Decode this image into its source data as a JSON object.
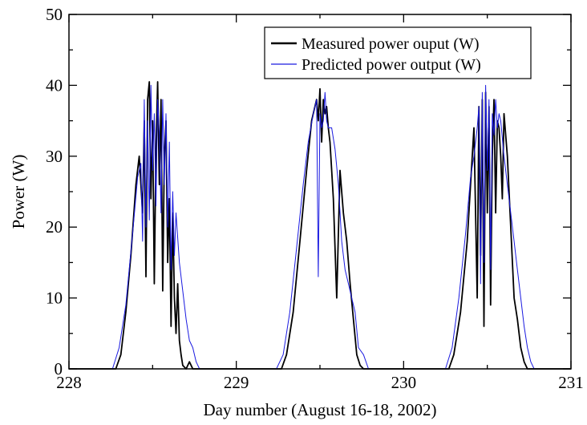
{
  "chart_data": {
    "type": "line",
    "title": "",
    "xlabel": "Day number (August  16-18, 2002)",
    "ylabel": "Power (W)",
    "xlim": [
      228,
      231
    ],
    "ylim": [
      0,
      50
    ],
    "xticks": [
      228,
      229,
      230,
      231
    ],
    "yticks": [
      0,
      10,
      20,
      30,
      40,
      50
    ],
    "grid": false,
    "legend_position": "top-right",
    "series": [
      {
        "name": "Measured power ouput (W)",
        "color": "#000000",
        "x": [
          228.0,
          228.28,
          228.31,
          228.34,
          228.37,
          228.4,
          228.42,
          228.44,
          228.45,
          228.46,
          228.47,
          228.48,
          228.49,
          228.5,
          228.51,
          228.52,
          228.53,
          228.54,
          228.55,
          228.56,
          228.57,
          228.58,
          228.59,
          228.6,
          228.61,
          228.62,
          228.63,
          228.64,
          228.65,
          228.66,
          228.67,
          228.68,
          228.7,
          228.72,
          228.74,
          228.76,
          229.0,
          229.27,
          229.3,
          229.34,
          229.38,
          229.42,
          229.45,
          229.47,
          229.48,
          229.49,
          229.5,
          229.51,
          229.52,
          229.53,
          229.54,
          229.55,
          229.56,
          229.58,
          229.6,
          229.62,
          229.64,
          229.66,
          229.68,
          229.7,
          229.72,
          229.74,
          229.76,
          230.0,
          230.27,
          230.3,
          230.34,
          230.38,
          230.4,
          230.42,
          230.44,
          230.45,
          230.46,
          230.47,
          230.48,
          230.49,
          230.5,
          230.51,
          230.52,
          230.53,
          230.54,
          230.55,
          230.56,
          230.57,
          230.58,
          230.59,
          230.6,
          230.62,
          230.64,
          230.66,
          230.68,
          230.7,
          230.72,
          230.74,
          230.76,
          231.0
        ],
        "y": [
          0,
          0,
          2,
          8,
          16,
          26,
          30,
          22,
          35,
          13,
          38,
          40.5,
          24,
          35,
          12,
          31,
          40.5,
          26,
          38,
          11,
          30,
          35,
          15,
          24,
          6,
          22,
          10,
          5,
          12,
          4,
          2,
          0.5,
          0,
          1,
          0,
          0,
          0,
          0,
          2,
          8,
          18,
          28,
          35,
          37,
          38,
          35,
          39.5,
          32,
          38,
          36,
          37,
          34,
          32,
          24,
          10,
          28,
          22,
          18,
          12,
          7,
          2,
          0.5,
          0,
          0,
          0,
          2,
          8,
          18,
          26,
          34,
          10,
          37,
          16,
          38,
          6,
          39,
          22,
          37,
          9,
          30,
          38,
          22,
          35,
          34,
          30,
          24,
          36,
          30,
          20,
          10,
          7,
          3,
          1,
          0,
          0,
          0
        ],
        "line_width": 1.8
      },
      {
        "name": "Predicted power output (W)",
        "color": "#1a1ae0",
        "x": [
          228.0,
          228.26,
          228.3,
          228.34,
          228.38,
          228.41,
          228.43,
          228.44,
          228.45,
          228.46,
          228.47,
          228.48,
          228.49,
          228.5,
          228.51,
          228.52,
          228.53,
          228.54,
          228.55,
          228.56,
          228.57,
          228.58,
          228.59,
          228.6,
          228.61,
          228.62,
          228.63,
          228.64,
          228.66,
          228.68,
          228.7,
          228.72,
          228.74,
          228.76,
          228.78,
          229.0,
          229.24,
          229.28,
          229.32,
          229.36,
          229.4,
          229.43,
          229.46,
          229.48,
          229.49,
          229.5,
          229.51,
          229.52,
          229.53,
          229.54,
          229.55,
          229.57,
          229.59,
          229.61,
          229.63,
          229.65,
          229.67,
          229.69,
          229.71,
          229.73,
          229.76,
          229.79,
          230.0,
          230.25,
          230.29,
          230.33,
          230.37,
          230.4,
          230.42,
          230.44,
          230.45,
          230.46,
          230.47,
          230.48,
          230.49,
          230.5,
          230.51,
          230.52,
          230.53,
          230.54,
          230.55,
          230.56,
          230.57,
          230.58,
          230.6,
          230.62,
          230.64,
          230.66,
          230.68,
          230.7,
          230.72,
          230.74,
          230.76,
          230.78,
          230.8,
          231.0
        ],
        "y": [
          0,
          0,
          3,
          9,
          19,
          27,
          29,
          18,
          38,
          20,
          35,
          21,
          40,
          28,
          36,
          23,
          38,
          33,
          22,
          38,
          26,
          36,
          20,
          32,
          14,
          25,
          16,
          22,
          15,
          11,
          7,
          4,
          3,
          1,
          0,
          0,
          0,
          2,
          8,
          17,
          26,
          32,
          36,
          38,
          13,
          36,
          34,
          35,
          39,
          35,
          34,
          34,
          31,
          26,
          18,
          14,
          12,
          10,
          8,
          3,
          2,
          0,
          0,
          0,
          3,
          10,
          19,
          27,
          30,
          34,
          37,
          12,
          39,
          15,
          40,
          28,
          38,
          14,
          36,
          33,
          38,
          34,
          36,
          35,
          30,
          26,
          22,
          18,
          14,
          10,
          6,
          3,
          1,
          0,
          0,
          0
        ],
        "line_width": 1.0
      }
    ]
  }
}
